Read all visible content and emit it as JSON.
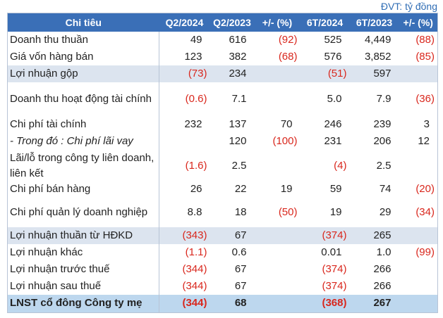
{
  "unit": "ĐVT: tỷ đồng",
  "table": {
    "header": [
      "Chi tiêu",
      "Q2/2024",
      "Q2/2023",
      "+/- (%)",
      "6T/2024",
      "6T/2023",
      "+/- (%)"
    ],
    "rows": [
      [
        "Doanh thu thuần",
        "49",
        "616",
        "(92)",
        "525",
        "4,449",
        "(88)"
      ],
      [
        "Giá vốn hàng bán",
        "123",
        "382",
        "(68)",
        "576",
        "3,852",
        "(85)"
      ],
      [
        "Lợi nhuận gộp",
        "(73)",
        "234",
        null,
        "(51)",
        "597",
        null
      ],
      [
        "Doanh thu hoạt động tài chính",
        "(0.6)",
        "7.1",
        null,
        "5.0",
        "7.9",
        "(36)"
      ],
      [
        "Chi phí tài chính",
        "232",
        "137",
        "70",
        "246",
        "239",
        "3"
      ],
      [
        "- Trong đó : Chi phí lãi vay",
        null,
        "120",
        "(100)",
        "231",
        "206",
        "12"
      ],
      [
        "Lãi/lỗ trong công ty liên doanh, liên kết",
        "(1.6)",
        "2.5",
        null,
        "(4)",
        "2.5",
        null
      ],
      [
        "Chi phí bán hàng",
        "26",
        "22",
        "19",
        "59",
        "74",
        "(20)"
      ],
      [
        "Chi phí quản lý doanh nghiệp",
        "8.8",
        "18",
        "(50)",
        "19",
        "29",
        "(34)"
      ],
      [
        "Lợi nhuận thuần từ HĐKD",
        "(343)",
        "67",
        null,
        "(374)",
        "265",
        null
      ],
      [
        "Lợi nhuận khác",
        "(1.1)",
        "0.6",
        null,
        "0.01",
        "1.0",
        "(99)"
      ],
      [
        "Lợi nhuận trước thuế",
        "(344)",
        "67",
        null,
        "(374)",
        "266",
        null
      ],
      [
        "Lợi nhuận sau thuế",
        "(344)",
        "67",
        null,
        "(374)",
        "266",
        null
      ],
      [
        "LNST cổ đông Công ty mẹ",
        "(344)",
        "68",
        null,
        "(368)",
        "267",
        null
      ]
    ]
  }
}
